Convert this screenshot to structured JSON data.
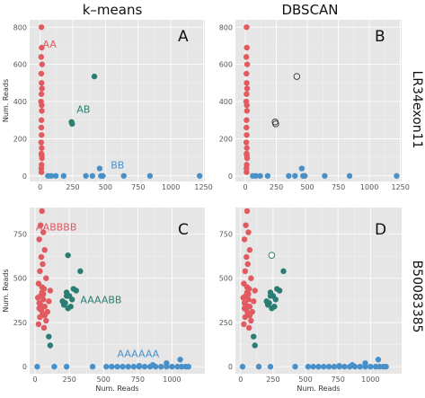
{
  "column_titles": [
    "k–means",
    "DBSCAN"
  ],
  "row_titles": [
    "LR34exon11",
    "B50083385"
  ],
  "colors": {
    "red": "#e05a5f",
    "teal": "#2a7d72",
    "blue": "#4a90c8",
    "panel_bg": "#e6e6e6",
    "outlier_stroke": "#333333"
  },
  "chart_data": [
    {
      "type": "scatter",
      "panel": "A",
      "xlabel": "",
      "ylabel": "Num. Reads",
      "xlim": [
        -80,
        1260
      ],
      "ylim": [
        -30,
        840
      ],
      "xticks": [
        0,
        250,
        500,
        750,
        1000,
        1250
      ],
      "yticks": [
        0,
        200,
        400,
        600,
        800
      ],
      "series": [
        {
          "color": "red",
          "label": "AA",
          "label_pos": [
            20,
            690
          ],
          "x": [
            10,
            12,
            8,
            15,
            9,
            11,
            14,
            10,
            7,
            12,
            13,
            10,
            9,
            11,
            8,
            12,
            10,
            14,
            11,
            9,
            10,
            12
          ],
          "y": [
            800,
            690,
            640,
            600,
            550,
            500,
            470,
            440,
            400,
            380,
            350,
            300,
            260,
            220,
            180,
            150,
            120,
            95,
            60,
            40,
            20,
            110
          ]
        },
        {
          "color": "teal",
          "label": "AB",
          "label_pos": [
            280,
            340
          ],
          "x": [
            415,
            240,
            245
          ],
          "y": [
            535,
            290,
            280
          ]
        },
        {
          "color": "blue",
          "label": "BB",
          "label_pos": [
            540,
            40
          ],
          "x": [
            60,
            85,
            120,
            180,
            350,
            400,
            455,
            465,
            480,
            640,
            840,
            1220
          ],
          "y": [
            0,
            0,
            0,
            0,
            0,
            0,
            40,
            0,
            0,
            0,
            0,
            0
          ]
        }
      ]
    },
    {
      "type": "scatter",
      "panel": "B",
      "xlabel": "",
      "ylabel": "",
      "xlim": [
        -80,
        1260
      ],
      "ylim": [
        -30,
        840
      ],
      "xticks": [
        0,
        250,
        500,
        750,
        1000,
        1250
      ],
      "yticks": [
        0,
        200,
        400,
        600,
        800
      ],
      "series": [
        {
          "color": "red",
          "x": [
            10,
            12,
            8,
            15,
            9,
            11,
            14,
            10,
            7,
            12,
            13,
            10,
            9,
            11,
            8,
            12,
            10,
            14,
            11,
            9,
            10,
            12
          ],
          "y": [
            800,
            690,
            640,
            600,
            550,
            500,
            470,
            440,
            400,
            380,
            350,
            300,
            260,
            220,
            180,
            150,
            120,
            95,
            60,
            40,
            20,
            110
          ]
        },
        {
          "color": "outlier",
          "x": [
            415,
            240,
            245
          ],
          "y": [
            535,
            290,
            280
          ]
        },
        {
          "color": "blue",
          "x": [
            60,
            85,
            120,
            180,
            350,
            400,
            455,
            465,
            480,
            640,
            840,
            1220
          ],
          "y": [
            0,
            0,
            0,
            0,
            0,
            0,
            40,
            0,
            0,
            0,
            0,
            0
          ]
        }
      ]
    },
    {
      "type": "scatter",
      "panel": "C",
      "xlabel": "Num. Reads",
      "ylabel": "Num. Reads",
      "xlim": [
        -40,
        1240
      ],
      "ylim": [
        -40,
        900
      ],
      "xticks": [
        0,
        250,
        500,
        750,
        1000
      ],
      "yticks": [
        0,
        250,
        500,
        750
      ],
      "series": [
        {
          "color": "red",
          "label": "AABBBB",
          "label_pos": [
            5,
            770
          ],
          "x": [
            50,
            40,
            60,
            30,
            70,
            45,
            55,
            35,
            80,
            25,
            65,
            50,
            40,
            60,
            30,
            70,
            45,
            55,
            35,
            80,
            25,
            65,
            50,
            40,
            60,
            30,
            70,
            90,
            100,
            20,
            110
          ],
          "y": [
            880,
            800,
            760,
            720,
            660,
            620,
            580,
            540,
            500,
            470,
            440,
            420,
            400,
            380,
            360,
            340,
            320,
            300,
            280,
            260,
            240,
            220,
            450,
            350,
            410,
            330,
            290,
            310,
            370,
            390,
            430
          ]
        },
        {
          "color": "teal",
          "label": "AAAABB",
          "label_pos": [
            330,
            360
          ],
          "x": [
            240,
            330,
            280,
            230,
            250,
            270,
            200,
            220,
            210,
            260,
            240,
            230,
            100,
            110,
            300
          ],
          "y": [
            630,
            540,
            440,
            420,
            400,
            380,
            370,
            360,
            350,
            340,
            330,
            400,
            170,
            120,
            430
          ]
        },
        {
          "color": "blue",
          "label": "AAAAAA",
          "label_pos": [
            600,
            55
          ],
          "x": [
            15,
            140,
            230,
            420,
            520,
            560,
            600,
            640,
            680,
            720,
            760,
            800,
            840,
            880,
            920,
            960,
            1000,
            1040,
            1070,
            1100,
            1120,
            1060,
            960,
            860,
            760
          ],
          "y": [
            0,
            0,
            0,
            0,
            0,
            0,
            0,
            0,
            0,
            0,
            0,
            0,
            0,
            0,
            0,
            0,
            0,
            0,
            0,
            0,
            0,
            40,
            20,
            10,
            5
          ]
        }
      ]
    },
    {
      "type": "scatter",
      "panel": "D",
      "xlabel": "Num. Reads",
      "ylabel": "",
      "xlim": [
        -40,
        1240
      ],
      "ylim": [
        -40,
        900
      ],
      "xticks": [
        0,
        250,
        500,
        750,
        1000
      ],
      "yticks": [
        0,
        250,
        500,
        750
      ],
      "series": [
        {
          "color": "red",
          "x": [
            50,
            40,
            60,
            30,
            70,
            45,
            55,
            35,
            80,
            25,
            65,
            50,
            40,
            60,
            30,
            70,
            45,
            55,
            35,
            80,
            25,
            65,
            50,
            40,
            60,
            30,
            70,
            90,
            100,
            20,
            110
          ],
          "y": [
            880,
            800,
            760,
            720,
            660,
            620,
            580,
            540,
            500,
            470,
            440,
            420,
            400,
            380,
            360,
            340,
            320,
            300,
            280,
            260,
            240,
            220,
            450,
            350,
            410,
            330,
            290,
            310,
            370,
            390,
            430
          ]
        },
        {
          "color": "outlier_teal",
          "x": [
            240
          ],
          "y": [
            630
          ]
        },
        {
          "color": "teal",
          "x": [
            330,
            280,
            230,
            250,
            270,
            200,
            220,
            210,
            260,
            240,
            230,
            100,
            110,
            300
          ],
          "y": [
            540,
            440,
            420,
            400,
            380,
            370,
            360,
            350,
            340,
            330,
            400,
            170,
            120,
            430
          ]
        },
        {
          "color": "blue",
          "x": [
            15,
            140,
            230,
            420,
            520,
            560,
            600,
            640,
            680,
            720,
            760,
            800,
            840,
            880,
            920,
            960,
            1000,
            1040,
            1070,
            1100,
            1120,
            1060,
            960,
            860,
            760
          ],
          "y": [
            0,
            0,
            0,
            0,
            0,
            0,
            0,
            0,
            0,
            0,
            0,
            0,
            0,
            0,
            0,
            0,
            0,
            0,
            0,
            0,
            0,
            40,
            20,
            10,
            5
          ]
        }
      ]
    }
  ],
  "panel_letters": [
    "A",
    "B",
    "C",
    "D"
  ]
}
